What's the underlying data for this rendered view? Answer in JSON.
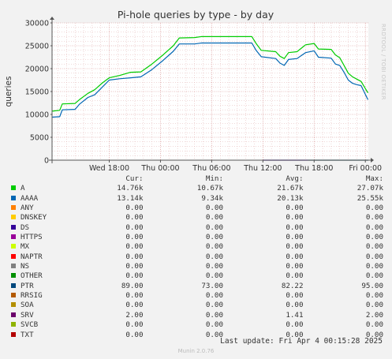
{
  "chart_data": {
    "type": "line",
    "title": "Pi-hole queries by type - by day",
    "ylabel": "queries",
    "xlabel": "",
    "ylim": [
      0,
      30000
    ],
    "yticks": [
      0,
      5000,
      10000,
      15000,
      20000,
      25000,
      30000
    ],
    "ytick_labels": [
      "0",
      "5000",
      "10000",
      "15000",
      "20000",
      "25000",
      "30000"
    ],
    "xlim": [
      -6.7,
      30.35
    ],
    "xticks": [
      {
        "x": 0,
        "label": "Wed 18:00"
      },
      {
        "x": 6,
        "label": "Thu 00:00"
      },
      {
        "x": 12,
        "label": "Thu 06:00"
      },
      {
        "x": 18,
        "label": "Thu 12:00"
      },
      {
        "x": 24,
        "label": "Thu 18:00"
      },
      {
        "x": 30,
        "label": "Fri 00:00"
      }
    ],
    "x_unit_note": "",
    "grid": true,
    "series": [
      {
        "name": "A",
        "color": "#00cc00",
        "points": [
          [
            -6.7,
            10700
          ],
          [
            -5.8,
            10900
          ],
          [
            -5.5,
            12300
          ],
          [
            -4.0,
            12400
          ],
          [
            -3.5,
            13200
          ],
          [
            -2.5,
            14600
          ],
          [
            -1.7,
            15400
          ],
          [
            -0.8,
            16900
          ],
          [
            0,
            18000
          ],
          [
            1.2,
            18500
          ],
          [
            2.5,
            19200
          ],
          [
            3.7,
            19300
          ],
          [
            5,
            21000
          ],
          [
            6.3,
            23000
          ],
          [
            7.5,
            25000
          ],
          [
            8.2,
            26700
          ],
          [
            10,
            26800
          ],
          [
            10.8,
            27000
          ],
          [
            16.7,
            27000
          ],
          [
            17.2,
            25500
          ],
          [
            17.8,
            24000
          ],
          [
            19.5,
            23700
          ],
          [
            20,
            22700
          ],
          [
            20.5,
            22200
          ],
          [
            21,
            23500
          ],
          [
            22,
            23700
          ],
          [
            23,
            25200
          ],
          [
            24,
            25500
          ],
          [
            24.5,
            24300
          ],
          [
            26,
            24200
          ],
          [
            26.5,
            23000
          ],
          [
            27,
            22400
          ],
          [
            27.5,
            20700
          ],
          [
            28,
            19000
          ],
          [
            28.5,
            18200
          ],
          [
            29,
            17700
          ],
          [
            29.5,
            17200
          ],
          [
            30.3,
            14700
          ]
        ]
      },
      {
        "name": "AAAA",
        "color": "#0066b3",
        "points": [
          [
            -6.7,
            9400
          ],
          [
            -5.8,
            9500
          ],
          [
            -5.5,
            11000
          ],
          [
            -4.0,
            11100
          ],
          [
            -3.5,
            12200
          ],
          [
            -2.5,
            13700
          ],
          [
            -1.7,
            14300
          ],
          [
            -0.8,
            16000
          ],
          [
            0,
            17500
          ],
          [
            1.2,
            17800
          ],
          [
            2.5,
            18000
          ],
          [
            3.7,
            18200
          ],
          [
            5,
            19800
          ],
          [
            6.3,
            21800
          ],
          [
            7.5,
            23800
          ],
          [
            8.2,
            25400
          ],
          [
            10,
            25400
          ],
          [
            10.8,
            25600
          ],
          [
            16.7,
            25600
          ],
          [
            17.2,
            24000
          ],
          [
            17.8,
            22600
          ],
          [
            19.5,
            22200
          ],
          [
            20,
            21200
          ],
          [
            20.5,
            20700
          ],
          [
            21,
            22000
          ],
          [
            22,
            22200
          ],
          [
            23,
            23500
          ],
          [
            24,
            23900
          ],
          [
            24.5,
            22500
          ],
          [
            26,
            22300
          ],
          [
            26.5,
            21000
          ],
          [
            27,
            20700
          ],
          [
            27.5,
            19200
          ],
          [
            28,
            17500
          ],
          [
            28.5,
            16800
          ],
          [
            29,
            16500
          ],
          [
            29.5,
            16300
          ],
          [
            30.3,
            13200
          ]
        ]
      },
      {
        "name": "PTR",
        "color": "#00455c",
        "points": [
          [
            23.3,
            0
          ],
          [
            30.35,
            0
          ]
        ]
      },
      {
        "name": "SRV",
        "color": "#330099",
        "points": [
          [
            18.0,
            0
          ],
          [
            23.3,
            0
          ]
        ]
      }
    ],
    "legend": {
      "headers": [
        "Cur:",
        "Min:",
        "Avg:",
        "Max:"
      ],
      "rows": [
        {
          "name": "A",
          "color": "#00cc00",
          "cur": "14.76k",
          "min": "10.67k",
          "avg": "21.67k",
          "max": "27.07k"
        },
        {
          "name": "AAAA",
          "color": "#0066b3",
          "cur": "13.14k",
          "min": "9.34k",
          "avg": "20.13k",
          "max": "25.55k"
        },
        {
          "name": "ANY",
          "color": "#ff8000",
          "cur": "0.00",
          "min": "0.00",
          "avg": "0.00",
          "max": "0.00"
        },
        {
          "name": "DNSKEY",
          "color": "#ffcc00",
          "cur": "0.00",
          "min": "0.00",
          "avg": "0.00",
          "max": "0.00"
        },
        {
          "name": "DS",
          "color": "#330099",
          "cur": "0.00",
          "min": "0.00",
          "avg": "0.00",
          "max": "0.00"
        },
        {
          "name": "HTTPS",
          "color": "#990099",
          "cur": "0.00",
          "min": "0.00",
          "avg": "0.00",
          "max": "0.00"
        },
        {
          "name": "MX",
          "color": "#ccff00",
          "cur": "0.00",
          "min": "0.00",
          "avg": "0.00",
          "max": "0.00"
        },
        {
          "name": "NAPTR",
          "color": "#ff0000",
          "cur": "0.00",
          "min": "0.00",
          "avg": "0.00",
          "max": "0.00"
        },
        {
          "name": "NS",
          "color": "#808080",
          "cur": "0.00",
          "min": "0.00",
          "avg": "0.00",
          "max": "0.00"
        },
        {
          "name": "OTHER",
          "color": "#008f00",
          "cur": "0.00",
          "min": "0.00",
          "avg": "0.00",
          "max": "0.00"
        },
        {
          "name": "PTR",
          "color": "#00487d",
          "cur": "89.00",
          "min": "73.00",
          "avg": "82.22",
          "max": "95.00"
        },
        {
          "name": "RRSIG",
          "color": "#b35a00",
          "cur": "0.00",
          "min": "0.00",
          "avg": "0.00",
          "max": "0.00"
        },
        {
          "name": "SOA",
          "color": "#b38f00",
          "cur": "0.00",
          "min": "0.00",
          "avg": "0.00",
          "max": "0.00"
        },
        {
          "name": "SRV",
          "color": "#6b006b",
          "cur": "2.00",
          "min": "0.00",
          "avg": "1.41",
          "max": "2.00"
        },
        {
          "name": "SVCB",
          "color": "#8fb300",
          "cur": "0.00",
          "min": "0.00",
          "avg": "0.00",
          "max": "0.00"
        },
        {
          "name": "TXT",
          "color": "#b30000",
          "cur": "0.00",
          "min": "0.00",
          "avg": "0.00",
          "max": "0.00"
        }
      ]
    }
  },
  "footer": {
    "last_update": "Last update: Fri Apr  4 00:15:28 2025",
    "version": "Munin 2.0.76"
  },
  "side_credit": "RRDTOOL / TOBI OETIKER"
}
